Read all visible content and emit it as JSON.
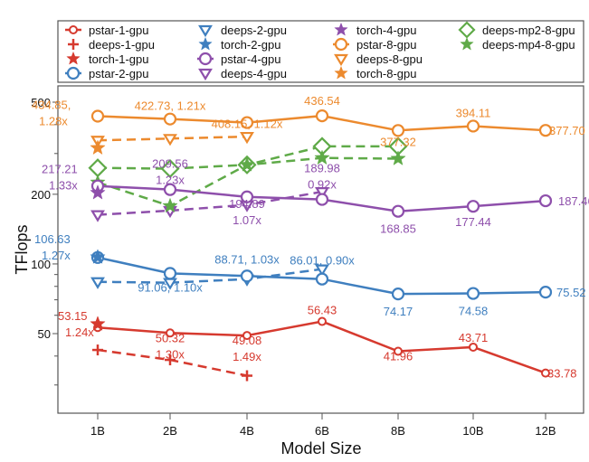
{
  "chart_data": {
    "type": "line",
    "title": "",
    "xlabel": "Model Size",
    "ylabel": "TFlops",
    "yscale": "log",
    "ylim": [
      22.4,
      588
    ],
    "y_ticks_major": [
      50,
      100,
      200,
      500
    ],
    "y_ticks_minor": [
      30,
      40,
      60,
      70,
      80,
      90,
      300,
      400
    ],
    "categories": [
      "1B",
      "2B",
      "4B",
      "6B",
      "8B",
      "10B",
      "12B"
    ],
    "grid": false,
    "legend_position": "top",
    "colors": {
      "red": "#d63a2f",
      "blue": "#3f7fbf",
      "purple": "#8e4fab",
      "orange": "#ec8a2e",
      "green": "#5faa48"
    },
    "series": [
      {
        "name": "pstar-1-gpu",
        "color": "red",
        "marker": "circle-small",
        "dash": false,
        "values": [
          53.15,
          50.32,
          49.08,
          56.43,
          41.96,
          43.71,
          33.78
        ],
        "labels": [
          "53.15\n1.24x",
          "50.32\n1.30x",
          "49.08\n1.49x",
          "56.43",
          "41.96",
          "43.71",
          "33.78"
        ]
      },
      {
        "name": "deeps-1-gpu",
        "color": "red",
        "marker": "plus",
        "dash": true,
        "values": [
          42.5,
          38.5,
          32.9,
          null,
          null,
          null,
          null
        ]
      },
      {
        "name": "torch-1-gpu",
        "color": "red",
        "marker": "star",
        "dash": false,
        "values": [
          55,
          null,
          null,
          null,
          null,
          null,
          null
        ]
      },
      {
        "name": "pstar-2-gpu",
        "color": "blue",
        "marker": "circle",
        "dash": false,
        "values": [
          106.63,
          91.06,
          88.71,
          86.01,
          74.17,
          74.58,
          75.52
        ],
        "labels": [
          "106.63\n1.27x",
          "91.06, 1.10x",
          "88.71, 1.03x",
          "86.01, 0.90x",
          "74.17",
          "74.58",
          "75.52"
        ]
      },
      {
        "name": "deeps-2-gpu",
        "color": "blue",
        "marker": "triangle-down",
        "dash": true,
        "values": [
          83.7,
          83,
          86,
          95,
          null,
          null,
          null
        ]
      },
      {
        "name": "torch-2-gpu",
        "color": "blue",
        "marker": "star",
        "dash": false,
        "values": [
          107,
          null,
          null,
          null,
          null,
          null,
          null
        ]
      },
      {
        "name": "pstar-4-gpu",
        "color": "purple",
        "marker": "circle",
        "dash": false,
        "values": [
          217.21,
          209.56,
          194.89,
          189.98,
          168.85,
          177.44,
          187.46
        ],
        "labels": [
          "217.21\n1.33x",
          "209.56\n1.23x",
          "194.89\n1.07x",
          "189.98\n0.92x",
          "168.85",
          "177.44",
          "187.46"
        ]
      },
      {
        "name": "deeps-4-gpu",
        "color": "purple",
        "marker": "triangle-down",
        "dash": true,
        "values": [
          163,
          170,
          180,
          205,
          null,
          null,
          null
        ]
      },
      {
        "name": "torch-4-gpu",
        "color": "purple",
        "marker": "star",
        "dash": false,
        "values": [
          203,
          null,
          null,
          null,
          null,
          null,
          null
        ]
      },
      {
        "name": "pstar-8-gpu",
        "color": "orange",
        "marker": "circle",
        "dash": false,
        "values": [
          434.85,
          422.73,
          408.15,
          436.54,
          377.32,
          394.11,
          377.7
        ],
        "labels": [
          "434.85,\n1.28x",
          "422.73, 1.21x",
          "408.15, 1.12x",
          "436.54",
          "377.32",
          "394.11",
          "377.70"
        ]
      },
      {
        "name": "deeps-8-gpu",
        "color": "orange",
        "marker": "triangle-down",
        "dash": true,
        "values": [
          342,
          348,
          355,
          null,
          null,
          null,
          null
        ]
      },
      {
        "name": "torch-8-gpu",
        "color": "orange",
        "marker": "star",
        "dash": false,
        "values": [
          317,
          null,
          null,
          null,
          null,
          null,
          null
        ]
      },
      {
        "name": "deeps-mp2-8-gpu",
        "color": "green",
        "marker": "diamond",
        "dash": true,
        "values": [
          260,
          258,
          268,
          322,
          322,
          null,
          null
        ]
      },
      {
        "name": "deeps-mp4-8-gpu",
        "color": "green",
        "marker": "star",
        "dash": true,
        "values": [
          225,
          178,
          268,
          287,
          285,
          null,
          null
        ]
      }
    ]
  }
}
